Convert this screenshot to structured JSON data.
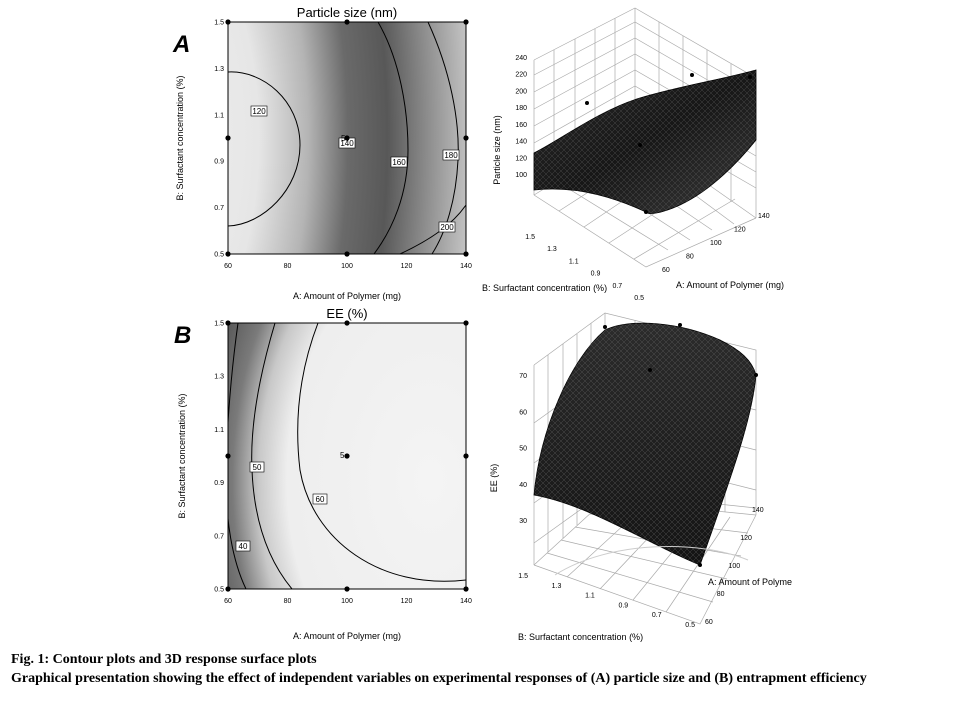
{
  "chart_data": [
    {
      "panel": "A",
      "type": "heatmap",
      "title": "Particle size (nm)",
      "xlabel": "A: Amount of Polymer (mg)",
      "ylabel": "B: Surfactant concentration (%)",
      "xlim": [
        60,
        140
      ],
      "ylim": [
        0.5,
        1.5
      ],
      "xticks": [
        "60",
        "80",
        "100",
        "120",
        "140"
      ],
      "yticks": [
        "0.5",
        "0.7",
        "0.9",
        "1.1",
        "1.3",
        "1.5"
      ],
      "contour_levels": [
        "120",
        "140",
        "160",
        "180",
        "200"
      ],
      "design_points_label": "5",
      "design_points": [
        [
          60,
          1.5
        ],
        [
          100,
          1.5
        ],
        [
          140,
          1.5
        ],
        [
          60,
          1.0
        ],
        [
          100,
          1.0
        ],
        [
          140,
          1.0
        ],
        [
          60,
          0.5
        ],
        [
          100,
          0.5
        ],
        [
          140,
          0.5
        ]
      ]
    },
    {
      "panel": "A",
      "type": "surface",
      "zlabel": "Particle size (nm)",
      "xlabel": "A: Amount of Polymer (mg)",
      "ylabel": "B: Surfactant concentration (%)",
      "zticks": [
        "100",
        "120",
        "140",
        "160",
        "180",
        "200",
        "220",
        "240"
      ],
      "xticks": [
        "60",
        "80",
        "100",
        "120",
        "140"
      ],
      "yticks": [
        "0.5",
        "0.7",
        "0.9",
        "1.1",
        "1.3",
        "1.5"
      ]
    },
    {
      "panel": "B",
      "type": "heatmap",
      "title": "EE (%)",
      "xlabel": "A: Amount of Polymer (mg)",
      "ylabel": "B: Surfactant concentration (%)",
      "xlim": [
        60,
        140
      ],
      "ylim": [
        0.5,
        1.5
      ],
      "xticks": [
        "60",
        "80",
        "100",
        "120",
        "140"
      ],
      "yticks": [
        "0.5",
        "0.7",
        "0.9",
        "1.1",
        "1.3",
        "1.5"
      ],
      "contour_levels": [
        "40",
        "50",
        "60"
      ],
      "design_points_label": "5",
      "design_points": [
        [
          60,
          1.5
        ],
        [
          100,
          1.5
        ],
        [
          140,
          1.5
        ],
        [
          60,
          1.0
        ],
        [
          100,
          1.0
        ],
        [
          140,
          1.0
        ],
        [
          60,
          0.5
        ],
        [
          100,
          0.5
        ],
        [
          140,
          0.5
        ]
      ]
    },
    {
      "panel": "B",
      "type": "surface",
      "zlabel": "EE (%)",
      "xlabel": "A: Amount of Polyme",
      "ylabel": "B: Surfactant concentration (%)",
      "zticks": [
        "30",
        "40",
        "50",
        "60",
        "70"
      ],
      "xticks": [
        "60",
        "80",
        "100",
        "120",
        "140"
      ],
      "yticks": [
        "0.5",
        "0.7",
        "0.9",
        "1.1",
        "1.3",
        "1.5"
      ]
    }
  ],
  "panel_labels": {
    "a": "A",
    "b": "B"
  },
  "caption": {
    "title": "Fig. 1: Contour plots and 3D response surface plots",
    "body": "Graphical presentation showing the effect of independent variables on experimental responses of (A) particle size and (B) entrapment efficiency"
  }
}
